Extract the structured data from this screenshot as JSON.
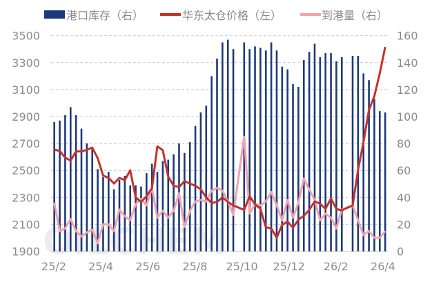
{
  "chart_data": {
    "type": "bar+line",
    "title": "",
    "watermark": "OILCHEM",
    "colors": {
      "bars": "#1c3a78",
      "price": "#c8302a",
      "arrivals": "#f2a3ae",
      "grid": "#c8c8c8",
      "text": "#8a8a8a"
    },
    "legend": {
      "placement": "top",
      "items": [
        "港口库存（右）",
        "华东太仓价格（左）",
        "到港量（右）"
      ]
    },
    "left_axis": {
      "min": 1900,
      "max": 3500,
      "ticks": [
        "3500",
        "3300",
        "3100",
        "2900",
        "2700",
        "2500",
        "2300",
        "2100",
        "1900"
      ]
    },
    "right_axis": {
      "min": 0,
      "max": 160,
      "ticks": [
        "160",
        "140",
        "120",
        "100",
        "80",
        "60",
        "40",
        "20",
        "0"
      ]
    },
    "x_tick_labels": [
      "25/2",
      "25/4",
      "25/6",
      "25/8",
      "25/10",
      "25/12",
      "26/2",
      "26/4"
    ],
    "series": [
      {
        "name": "港口库存（右）",
        "type": "bar",
        "axis": "right",
        "values": [
          96,
          97,
          101,
          107,
          101,
          91,
          80,
          77,
          61,
          55,
          59,
          46,
          53,
          56,
          49,
          49,
          48,
          58,
          65,
          59,
          67,
          68,
          72,
          80,
          73,
          81,
          93,
          103,
          108,
          130,
          143,
          155,
          157,
          150,
          null,
          155,
          150,
          152,
          151,
          149,
          155,
          149,
          137,
          135,
          124,
          122,
          142,
          148,
          154,
          144,
          147,
          147,
          141,
          144,
          null,
          145,
          145,
          132,
          127,
          113,
          104,
          103
        ]
      },
      {
        "name": "华东太仓价格（左）",
        "type": "line",
        "axis": "left",
        "values": [
          2655,
          2644,
          2595,
          2573,
          2641,
          2641,
          2653,
          2670,
          2590,
          2462,
          2445,
          2403,
          2445,
          2428,
          2501,
          2300,
          2266,
          2309,
          2368,
          2679,
          2650,
          2454,
          2386,
          2377,
          2420,
          2403,
          2386,
          2360,
          2300,
          2258,
          2266,
          2300,
          2266,
          2240,
          2224,
          2207,
          2309,
          2249,
          2215,
          2079,
          2070,
          2002,
          2096,
          2121,
          2075,
          2135,
          2164,
          2207,
          2271,
          2253,
          2215,
          2292,
          2215,
          2203,
          2224,
          2240,
          2505,
          2710,
          2948,
          3050,
          3220,
          3416
        ]
      },
      {
        "name": "到港量（右）",
        "type": "line",
        "axis": "right",
        "values": [
          36,
          15,
          17,
          24,
          15,
          11,
          14,
          16,
          6,
          20,
          20,
          15,
          31,
          26,
          23,
          35,
          39,
          34,
          47,
          25,
          30,
          25,
          30,
          43,
          18,
          30,
          37,
          38,
          37,
          45,
          47,
          45,
          37,
          27,
          56,
          85,
          28,
          35,
          34,
          37,
          44,
          34,
          23,
          38,
          25,
          36,
          54,
          46,
          38,
          23,
          28,
          25,
          17,
          31,
          32,
          34,
          23,
          12,
          15,
          10,
          10,
          15
        ]
      }
    ]
  }
}
